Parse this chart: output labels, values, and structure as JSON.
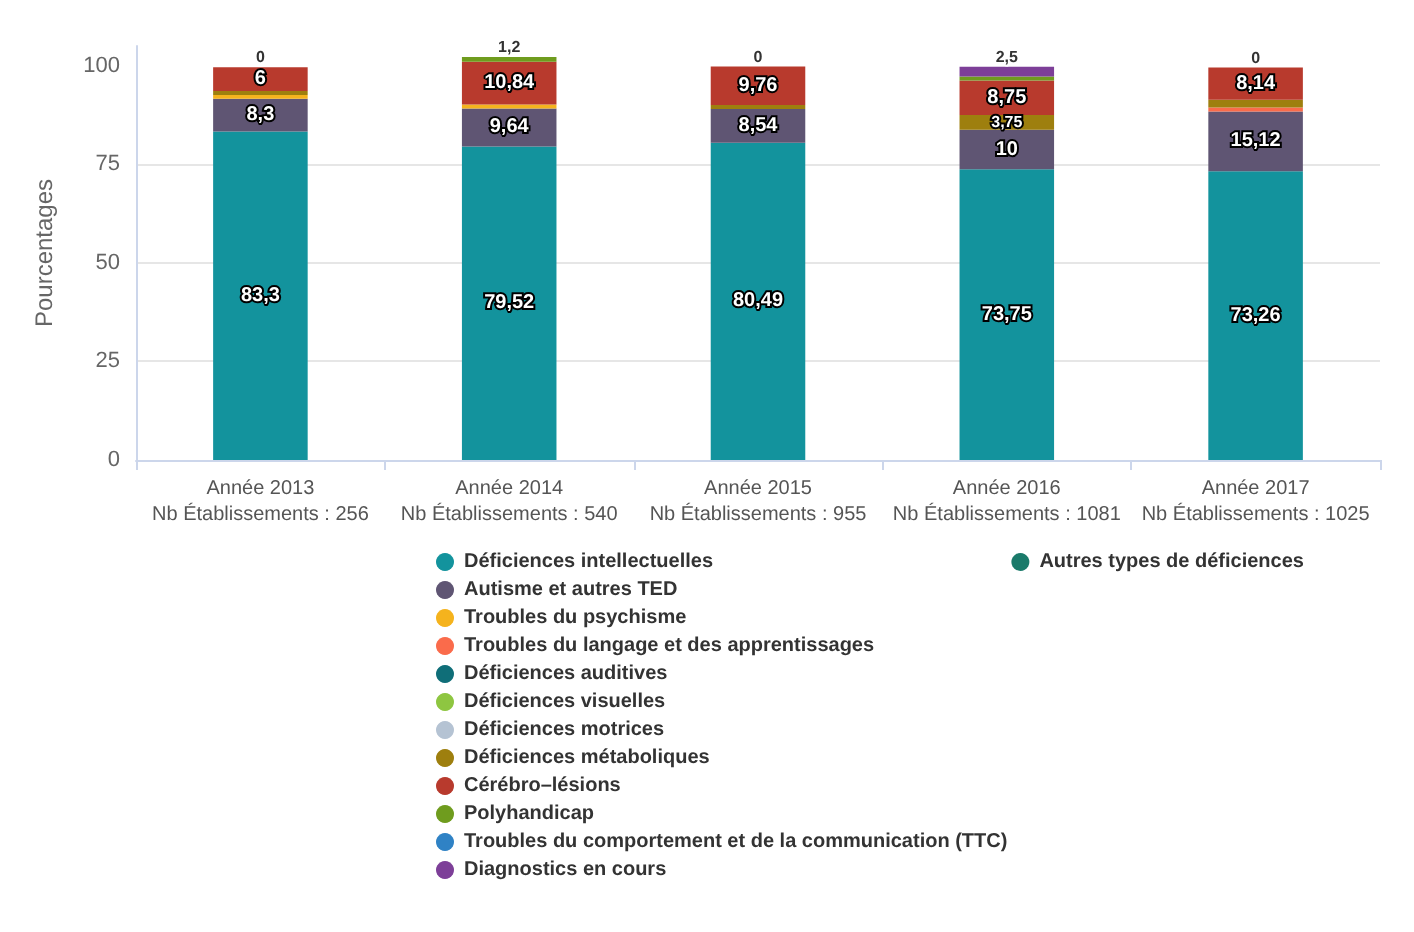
{
  "chart_data": {
    "type": "bar",
    "stacked": true,
    "ylabel": "Pourcentages",
    "categories": [
      "Année 2013\nNb Établissements : 256",
      "Année 2014\nNb Établissements : 540",
      "Année 2015\nNb Établissements : 955",
      "Année 2016\nNb Établissements : 1081",
      "Année 2017\nNb Établissements : 1025"
    ],
    "ylim": [
      0,
      105
    ],
    "yticks": [
      0,
      25,
      50,
      75,
      100
    ],
    "grid": "y",
    "legend": "bottom",
    "series": [
      {
        "name": "Déficiences intellectuelles",
        "color": "#13939d",
        "values": [
          83.3,
          79.52,
          80.49,
          73.75,
          73.26
        ],
        "value_labels": [
          "83,3",
          "79,52",
          "80,49",
          "73,75",
          "73,26"
        ]
      },
      {
        "name": "Autisme et autres TED",
        "color": "#5f5573",
        "values": [
          8.3,
          9.64,
          8.54,
          10,
          15.12
        ],
        "value_labels": [
          "8,3",
          "9,64",
          "8,54",
          "10",
          "15,12"
        ]
      },
      {
        "name": "Troubles du psychisme",
        "color": "#f5b31d",
        "values": [
          1,
          1,
          null,
          null,
          null
        ]
      },
      {
        "name": "Troubles du langage et des apprentissages",
        "color": "#fa6b4b",
        "values": [
          null,
          null,
          null,
          null,
          1
        ]
      },
      {
        "name": "Déficiences auditives",
        "color": "#0f6e78",
        "values": [
          null,
          null,
          null,
          null,
          null
        ]
      },
      {
        "name": "Déficiences visuelles",
        "color": "#8ec641",
        "values": [
          null,
          null,
          null,
          null,
          null
        ]
      },
      {
        "name": "Déficiences motrices",
        "color": "#b5c3d3",
        "values": [
          null,
          null,
          null,
          null,
          null
        ]
      },
      {
        "name": "Déficiences métaboliques",
        "color": "#9e7f0e",
        "values": [
          1,
          null,
          1,
          3.75,
          2
        ],
        "value_labels": [
          null,
          null,
          null,
          "3,75",
          null
        ]
      },
      {
        "name": "Cérébro–lésions",
        "color": "#b83a2d",
        "values": [
          6,
          10.84,
          9.76,
          8.75,
          8.14
        ],
        "value_labels": [
          "6",
          "10,84",
          "9,76",
          "8,75",
          "8,14"
        ]
      },
      {
        "name": "Polyhandicap",
        "color": "#6f9c1e",
        "values": [
          0,
          1.2,
          0,
          1,
          0
        ],
        "value_labels": [
          "0",
          "1,2",
          "0",
          null,
          "0"
        ]
      },
      {
        "name": "Troubles du comportement et de la communication (TTC)",
        "color": "#2f82c5",
        "values": [
          null,
          null,
          null,
          null,
          null
        ]
      },
      {
        "name": "Diagnostics en cours",
        "color": "#7d3f98",
        "values": [
          null,
          null,
          null,
          2.5,
          null
        ],
        "value_labels": [
          null,
          null,
          null,
          "2,5",
          null
        ]
      },
      {
        "name": "Autres types de déficiences",
        "color": "#1a7a6a",
        "values": [
          null,
          null,
          null,
          null,
          null
        ]
      }
    ]
  }
}
